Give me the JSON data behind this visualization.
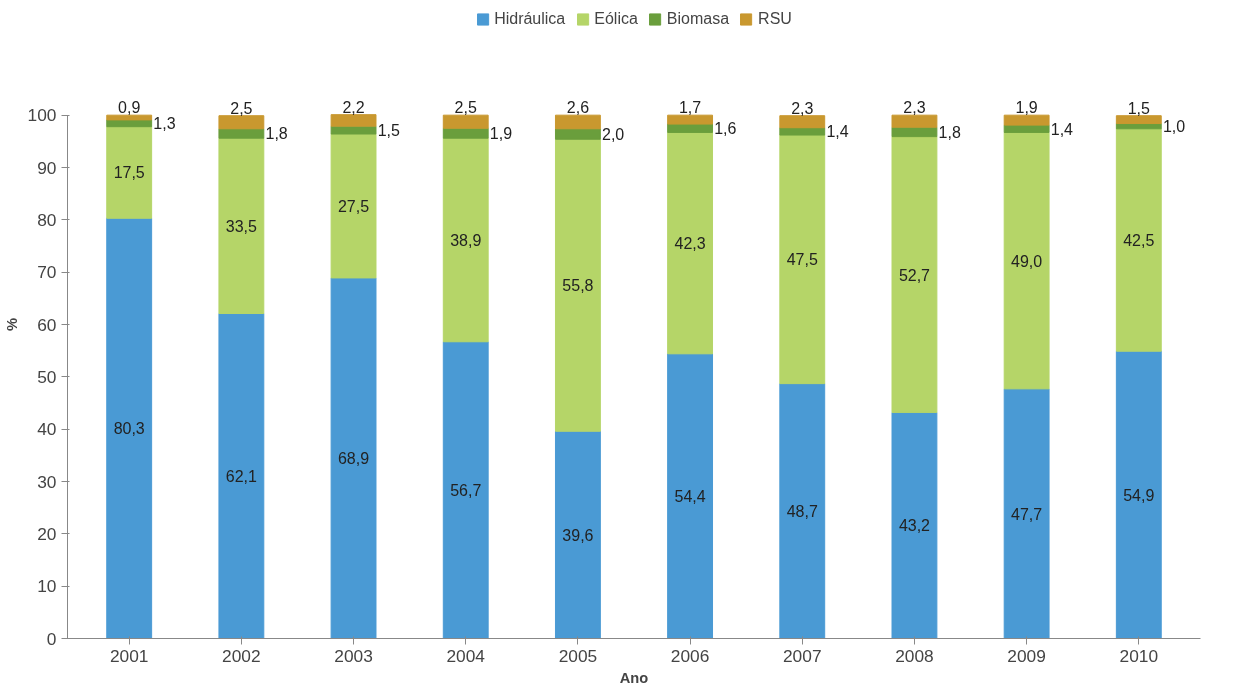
{
  "chart_data": {
    "type": "bar",
    "stacked": true,
    "xlabel": "Ano",
    "ylabel": "%",
    "categories": [
      "2001",
      "2002",
      "2003",
      "2004",
      "2005",
      "2006",
      "2007",
      "2008",
      "2009",
      "2010"
    ],
    "ylim": [
      0,
      100
    ],
    "yticks": [
      0,
      10,
      20,
      30,
      40,
      50,
      60,
      70,
      80,
      90,
      100
    ],
    "grid": false,
    "legend": "top",
    "series": [
      {
        "name": "Hidráulica",
        "color": "#4a9ad4",
        "values": [
          80.3,
          62.1,
          68.9,
          56.7,
          39.6,
          54.4,
          48.7,
          43.2,
          47.7,
          54.9
        ],
        "value_labels": [
          "80,3",
          "62,1",
          "68,9",
          "56,7",
          "39,6",
          "54,4",
          "48,7",
          "43,2",
          "47,7",
          "54,9"
        ]
      },
      {
        "name": "Eólica",
        "color": "#b5d568",
        "values": [
          17.5,
          33.5,
          27.5,
          38.9,
          55.8,
          42.3,
          47.5,
          52.7,
          49.0,
          42.5
        ],
        "value_labels": [
          "17,5",
          "33,5",
          "27,5",
          "38,9",
          "55,8",
          "42,3",
          "47,5",
          "52,7",
          "49,0",
          "42,5"
        ]
      },
      {
        "name": "Biomasa",
        "color": "#6a9e3c",
        "values": [
          1.3,
          1.8,
          1.5,
          1.9,
          2.0,
          1.6,
          1.4,
          1.8,
          1.4,
          1.0
        ],
        "value_labels": [
          "1,3",
          "1,8",
          "1,5",
          "1,9",
          "2,0",
          "1,6",
          "1,4",
          "1,8",
          "1,4",
          "1,0"
        ]
      },
      {
        "name": "RSU",
        "color": "#c9982f",
        "values": [
          0.9,
          2.5,
          2.2,
          2.5,
          2.6,
          1.7,
          2.3,
          2.3,
          1.9,
          1.5
        ],
        "value_labels": [
          "0,9",
          "2,5",
          "2,2",
          "2,5",
          "2,6",
          "1,7",
          "2,3",
          "2,3",
          "1,9",
          "1,5"
        ]
      }
    ]
  }
}
